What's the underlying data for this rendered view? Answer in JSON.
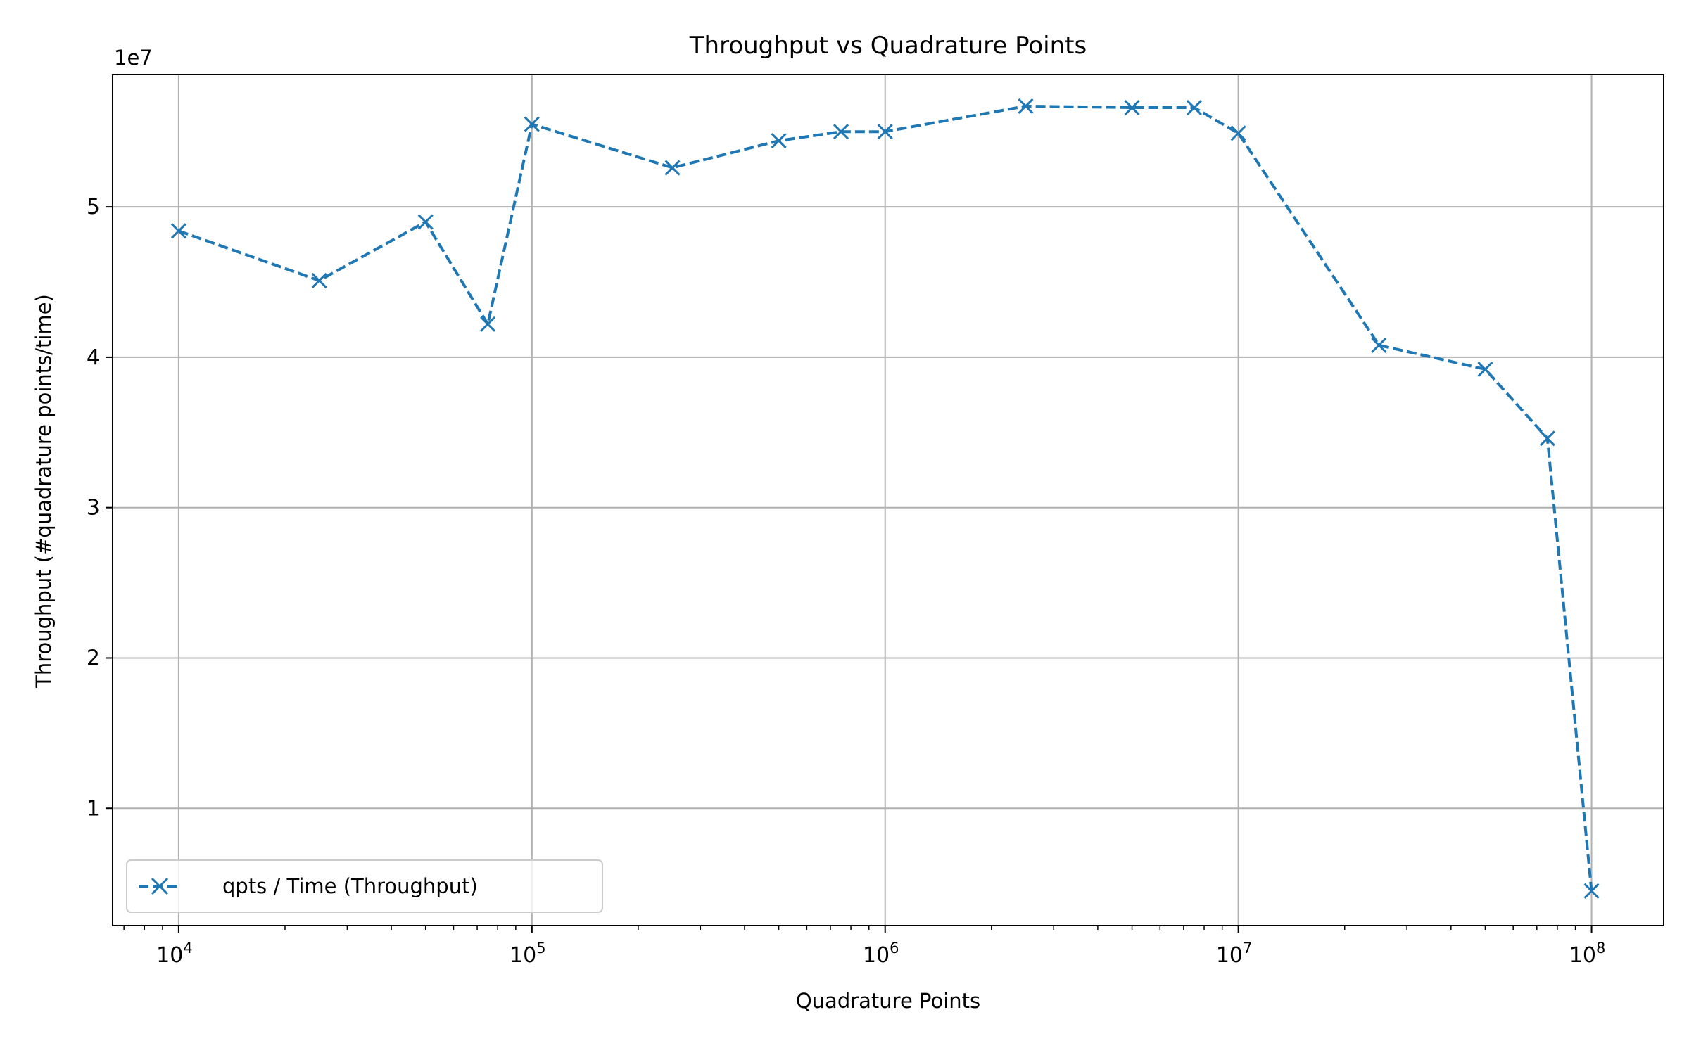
{
  "chart_data": {
    "type": "line",
    "title": "Throughput vs Quadrature Points",
    "xlabel": "Quadrature Points",
    "ylabel": "Throughput (#quadrature points/time)",
    "x_scale": "log",
    "xlim": [
      6500,
      160000000
    ],
    "ylim": [
      2200000,
      58800000
    ],
    "y_offset_label": "1e7",
    "grid": true,
    "legend_position": "lower-left",
    "x_ticks": [
      {
        "value": 10000,
        "base": "10",
        "exp": "4"
      },
      {
        "value": 100000,
        "base": "10",
        "exp": "5"
      },
      {
        "value": 1000000,
        "base": "10",
        "exp": "6"
      },
      {
        "value": 10000000,
        "base": "10",
        "exp": "7"
      },
      {
        "value": 100000000,
        "base": "10",
        "exp": "8"
      }
    ],
    "y_ticks": [
      {
        "value": 10000000,
        "label": "1"
      },
      {
        "value": 20000000,
        "label": "2"
      },
      {
        "value": 30000000,
        "label": "3"
      },
      {
        "value": 40000000,
        "label": "4"
      },
      {
        "value": 50000000,
        "label": "5"
      }
    ],
    "series": [
      {
        "name": "qpts / Time (Throughput)",
        "color": "#1f77b4",
        "line_style": "dashed",
        "marker": "x",
        "x": [
          10000,
          25000,
          50000,
          75000,
          100000,
          250000,
          500000,
          750000,
          1000000,
          2500000,
          5000000,
          7500000,
          10000000,
          25000000,
          50000000,
          75000000,
          100000000
        ],
        "y": [
          48400000,
          45100000,
          49000000,
          42200000,
          55500000,
          52600000,
          54400000,
          55000000,
          55000000,
          56700000,
          56600000,
          56600000,
          54900000,
          40800000,
          39200000,
          34600000,
          4500000
        ]
      }
    ]
  }
}
